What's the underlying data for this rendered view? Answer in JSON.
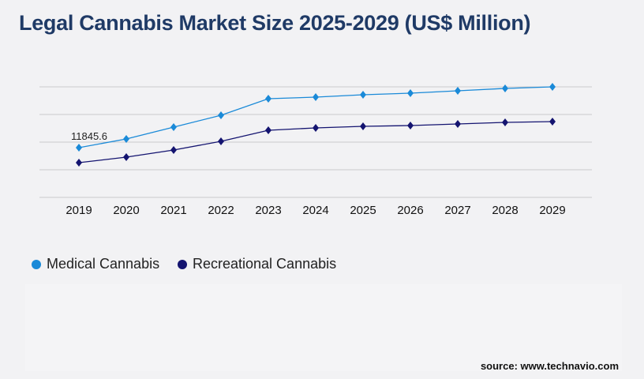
{
  "chart_data": {
    "type": "line",
    "title": "Legal Cannabis Market Size 2025-2029 (US$ Million)",
    "categories": [
      "2019",
      "2020",
      "2021",
      "2022",
      "2023",
      "2024",
      "2025",
      "2026",
      "2027",
      "2028",
      "2029"
    ],
    "series": [
      {
        "name": "Medical Cannabis",
        "color": "#1a8ad8",
        "values": [
          11845.6,
          13914,
          16733,
          19553,
          23503,
          23879,
          24443,
          24819,
          25384,
          25948,
          26324
        ]
      },
      {
        "name": "Recreational Cannabis",
        "color": "#141470",
        "values": [
          8273,
          9589,
          11282,
          13350,
          15982,
          16547,
          16922,
          17110,
          17487,
          17863,
          18051
        ]
      }
    ],
    "data_labels": [
      {
        "series": 0,
        "index": 0,
        "text": "11845.6"
      }
    ],
    "ylim": [
      0,
      26324
    ],
    "grid": true,
    "legend": "bottom-left"
  },
  "source": "source: www.technavio.com"
}
